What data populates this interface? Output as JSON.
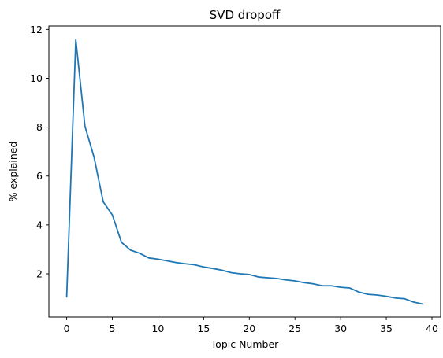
{
  "chart_data": {
    "type": "line",
    "title": "SVD dropoff",
    "xlabel": "Topic Number",
    "ylabel": "% explained",
    "xlim": [
      -1.95,
      40.95
    ],
    "ylim": [
      0.23,
      12.14
    ],
    "x_ticks": [
      0,
      5,
      10,
      15,
      20,
      25,
      30,
      35,
      40
    ],
    "y_ticks": [
      2,
      4,
      6,
      8,
      10,
      12
    ],
    "grid": false,
    "line_color": "#1f77b4",
    "series": [
      {
        "x": [
          0,
          1,
          2,
          3,
          4,
          5,
          6,
          7,
          8,
          9,
          10,
          11,
          12,
          13,
          14,
          15,
          16,
          17,
          18,
          19,
          20,
          21,
          22,
          23,
          24,
          25,
          26,
          27,
          28,
          29,
          30,
          31,
          32,
          33,
          34,
          35,
          36,
          37,
          38,
          39
        ],
        "values": [
          1.05,
          11.58,
          8.04,
          6.77,
          4.95,
          4.41,
          3.29,
          2.97,
          2.84,
          2.65,
          2.6,
          2.53,
          2.46,
          2.41,
          2.37,
          2.28,
          2.22,
          2.15,
          2.05,
          2.0,
          1.97,
          1.87,
          1.84,
          1.81,
          1.75,
          1.71,
          1.64,
          1.59,
          1.51,
          1.51,
          1.45,
          1.42,
          1.25,
          1.16,
          1.13,
          1.08,
          1.01,
          0.98,
          0.84,
          0.76
        ]
      }
    ]
  }
}
